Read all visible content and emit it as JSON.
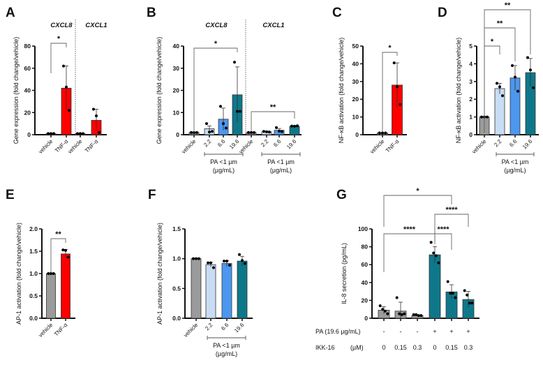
{
  "colors": {
    "vehicle": "#9b9b9b",
    "tnf": "#ff0000",
    "pa_2_2": "#c8dcf4",
    "pa_6_6": "#4c97ef",
    "pa_19_6": "#0e788a",
    "axis": "#111111"
  },
  "chart_data": [
    {
      "panel": "A",
      "type": "bar",
      "ylabel": "Gene expression (fold change/vehicle)",
      "ylim": [
        0,
        80
      ],
      "yticks": [
        0,
        20,
        40,
        60,
        80
      ],
      "headers": [
        "CXCL8",
        "CXCL1"
      ],
      "categories": [
        "vehicle",
        "TNF-α",
        "vehicle",
        "TNF-α"
      ],
      "values": [
        1,
        42,
        1,
        13
      ],
      "sd": [
        0.1,
        20,
        0.1,
        10
      ],
      "points": [
        [
          1,
          1,
          1
        ],
        [
          62,
          43,
          22
        ],
        [
          1,
          1,
          1
        ],
        [
          23,
          17,
          2
        ]
      ],
      "colors": [
        "vehicle",
        "tnf",
        "vehicle",
        "tnf"
      ],
      "significance": [
        {
          "from": 0,
          "to": 1,
          "label": "*"
        }
      ],
      "groups": []
    },
    {
      "panel": "B",
      "type": "bar",
      "ylabel": "Gene expression (fold change/vehicle)",
      "ylim": [
        0,
        40
      ],
      "yticks": [
        0,
        10,
        20,
        30,
        40
      ],
      "headers": [
        "CXCL8",
        "CXCL1"
      ],
      "categories": [
        "vehicle",
        "2.2",
        "6.6",
        "19.6",
        "vehicle",
        "2.2",
        "6.6",
        "19.6"
      ],
      "values": [
        1,
        2.7,
        7,
        18,
        1,
        1.3,
        2,
        3.8
      ],
      "sd": [
        0.1,
        1.2,
        5,
        12.6,
        0.1,
        0.3,
        0.8,
        0.3
      ],
      "points": [
        [
          1,
          1,
          1
        ],
        [
          5,
          1.2,
          1.5
        ],
        [
          12.8,
          5,
          3
        ],
        [
          32.7,
          10.5,
          10.5
        ],
        [
          1,
          1,
          1
        ],
        [
          1.5,
          1.3,
          1.2
        ],
        [
          3.2,
          1.6,
          1.4
        ],
        [
          3.9,
          3.8,
          4
        ]
      ],
      "colors": [
        "vehicle",
        "pa_2_2",
        "pa_6_6",
        "pa_19_6",
        "vehicle",
        "pa_2_2",
        "pa_6_6",
        "pa_19_6"
      ],
      "significance": [
        {
          "from": 0,
          "to": 3,
          "label": "*"
        },
        {
          "from": 4,
          "to": 7,
          "label": "**"
        }
      ],
      "groups": [
        {
          "line1": "PA <1 µm",
          "line2": "(µg/mL)"
        },
        {
          "line1": "PA <1 µm",
          "line2": "(µg/mL)"
        }
      ]
    },
    {
      "panel": "C",
      "type": "bar",
      "ylabel": "NF-κB activation (fold change/vehicle)",
      "ylim": [
        0,
        50
      ],
      "yticks": [
        0,
        10,
        20,
        30,
        40,
        50
      ],
      "headers": [],
      "categories": [
        "vehicle",
        "TNF-α"
      ],
      "values": [
        1,
        28
      ],
      "sd": [
        0.1,
        12.5
      ],
      "points": [
        [
          1,
          1,
          1
        ],
        [
          40.5,
          27,
          17
        ]
      ],
      "colors": [
        "vehicle",
        "tnf"
      ],
      "significance": [
        {
          "from": 0,
          "to": 1,
          "label": "*"
        }
      ],
      "groups": []
    },
    {
      "panel": "D",
      "type": "bar",
      "ylabel": "NF-κB activation (fold change/vehicle)",
      "ylim": [
        0,
        5
      ],
      "yticks": [
        0,
        1,
        2,
        3,
        4,
        5
      ],
      "headers": [],
      "categories": [
        "vehicle",
        "2.2",
        "6.6",
        "19.6"
      ],
      "values": [
        1,
        2.6,
        3.2,
        3.5
      ],
      "sd": [
        0.02,
        0.3,
        0.7,
        0.8
      ],
      "points": [
        [
          1,
          1,
          1
        ],
        [
          2.9,
          2.7,
          2.2
        ],
        [
          3.9,
          3.25,
          2.45
        ],
        [
          4.35,
          3.65,
          2.65
        ]
      ],
      "colors": [
        "vehicle",
        "pa_2_2",
        "pa_6_6",
        "pa_19_6"
      ],
      "significance": [
        {
          "from": 0,
          "to": 1,
          "label": "*"
        },
        {
          "from": 0,
          "to": 2,
          "label": "**"
        },
        {
          "from": 0,
          "to": 3,
          "label": "**"
        }
      ],
      "groups": [
        {
          "line1": "PA <1 µm",
          "line2": "(µg/mL)"
        }
      ]
    },
    {
      "panel": "E",
      "type": "bar",
      "ylabel": "AP-1 activation (fold change/vehicle)",
      "ylim": [
        0,
        2
      ],
      "yticks": [
        "0.0",
        "0.5",
        "1.0",
        "1.5",
        "2.0"
      ],
      "headers": [],
      "categories": [
        "vehicle",
        "TNF-α"
      ],
      "values": [
        1,
        1.44
      ],
      "sd": [
        0.01,
        0.1
      ],
      "points": [
        [
          1,
          1,
          1
        ],
        [
          1.53,
          1.52,
          1.37
        ]
      ],
      "colors": [
        "vehicle",
        "tnf"
      ],
      "significance": [
        {
          "from": 0,
          "to": 1,
          "label": "**"
        }
      ],
      "groups": []
    },
    {
      "panel": "F",
      "type": "bar",
      "ylabel": "AP-1 activation (fold change/vehicle)",
      "ylim": [
        0,
        1.5
      ],
      "yticks": [
        "0.0",
        "0.5",
        "1.0",
        "1.5"
      ],
      "headers": [],
      "categories": [
        "vehicle",
        "2.2",
        "6.6",
        "19.6"
      ],
      "values": [
        1,
        0.9,
        0.92,
        0.96
      ],
      "sd": [
        0.01,
        0.04,
        0.05,
        0.08
      ],
      "points": [
        [
          1,
          1,
          1
        ],
        [
          0.93,
          0.93,
          0.85
        ],
        [
          0.96,
          0.96,
          0.89
        ],
        [
          1.07,
          0.97,
          0.92
        ]
      ],
      "colors": [
        "vehicle",
        "pa_2_2",
        "pa_6_6",
        "pa_19_6"
      ],
      "significance": [],
      "groups": [
        {
          "line1": "PA <1 µm",
          "line2": "(µg/mL)"
        }
      ]
    },
    {
      "panel": "G",
      "type": "bar",
      "ylabel": "IL-8 secretion  (pg/mL)",
      "ylim": [
        0,
        100
      ],
      "yticks": [
        0,
        20,
        40,
        60,
        80,
        100
      ],
      "headers": [],
      "categories": [
        "",
        "",
        "",
        "",
        "",
        ""
      ],
      "values": [
        9,
        8,
        3,
        71,
        29.5,
        21
      ],
      "sd": [
        4,
        10,
        1,
        9,
        8,
        9
      ],
      "points": [
        [
          14,
          10,
          8,
          5
        ],
        [
          23,
          5,
          4,
          5
        ],
        [
          4,
          4,
          3,
          3
        ],
        [
          85,
          73,
          70,
          62
        ],
        [
          41,
          28,
          28,
          23
        ],
        [
          31,
          26,
          17,
          17
        ]
      ],
      "colors": [
        "vehicle",
        "vehicle",
        "vehicle",
        "pa_19_6",
        "pa_19_6",
        "pa_19_6"
      ],
      "significance": [
        {
          "from": 0,
          "to": 4,
          "label": "*"
        },
        {
          "from": 3,
          "to": 5,
          "label": "****"
        },
        {
          "from": 0,
          "to": 3,
          "label": "****"
        },
        {
          "from": 3,
          "to": 4,
          "label": "****"
        }
      ],
      "groups": [],
      "table": {
        "row1_label": "PA (19.6 µg/mL)",
        "row1": [
          "-",
          "-",
          "-",
          "+",
          "+",
          "+"
        ],
        "row2_label": "IKK-16",
        "row2_unit": "(µM)",
        "row2": [
          "0",
          "0.15",
          "0.3",
          "0",
          "0.15",
          "0.3"
        ]
      }
    }
  ]
}
